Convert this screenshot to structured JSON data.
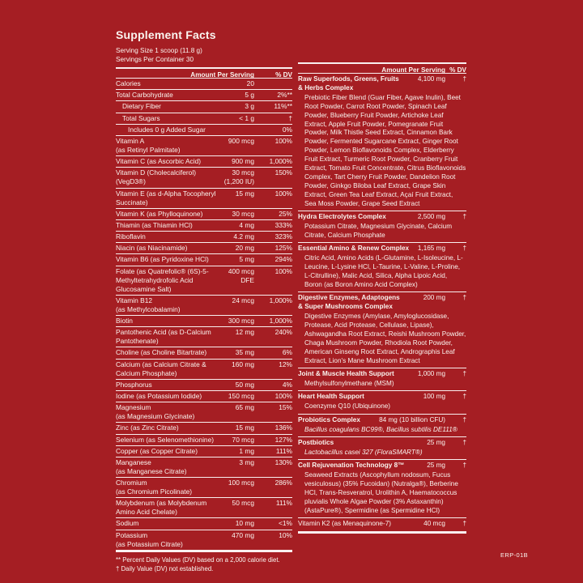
{
  "page": {
    "background_color": "#A51E23",
    "text_color": "#FAF4EF",
    "erp_code": "ERP-01B"
  },
  "header": {
    "title": "Supplement Facts",
    "serving_size": "Serving Size 1 scoop (11.8 g)",
    "servings_per_container": "Servings Per Container 30"
  },
  "left_table": {
    "col_amount": "Amount Per Serving",
    "col_dv": "% DV",
    "rows": [
      {
        "name": "Calories",
        "amount": "20",
        "dv": "",
        "indent": 0
      },
      {
        "name": "Total Carbohydrate",
        "amount": "5 g",
        "dv": "2%**",
        "indent": 0
      },
      {
        "name": "Dietary Fiber",
        "amount": "3 g",
        "dv": "11%**",
        "indent": 1
      },
      {
        "name": "Total Sugars",
        "amount": "< 1 g",
        "dv": "†",
        "indent": 1
      },
      {
        "name": "Includes 0 g Added Sugar",
        "amount": "",
        "dv": "0%",
        "indent": 2
      },
      {
        "name": "Vitamin A\n(as Retinyl Palmitate)",
        "amount": "900 mcg",
        "dv": "100%",
        "indent": 0
      },
      {
        "name": "Vitamin C (as Ascorbic Acid)",
        "amount": "900 mg",
        "dv": "1,000%",
        "indent": 0
      },
      {
        "name": "Vitamin D (Cholecalciferol)\n(VegD3®)",
        "amount": "30 mcg\n(1,200 IU)",
        "dv": "150%",
        "indent": 0
      },
      {
        "name": "Vitamin E (as d-Alpha Tocopheryl\nSuccinate)",
        "amount": "15 mg",
        "dv": "100%",
        "indent": 0
      },
      {
        "name": "Vitamin K (as Phylloquinone)",
        "amount": "30 mcg",
        "dv": "25%",
        "indent": 0
      },
      {
        "name": "Thiamin (as Thiamin HCl)",
        "amount": "4 mg",
        "dv": "333%",
        "indent": 0
      },
      {
        "name": "Riboflavin",
        "amount": "4.2 mg",
        "dv": "323%",
        "indent": 0
      },
      {
        "name": "Niacin (as Niacinamide)",
        "amount": "20 mg",
        "dv": "125%",
        "indent": 0
      },
      {
        "name": "Vitamin B6 (as Pyridoxine HCl)",
        "amount": "5 mg",
        "dv": "294%",
        "indent": 0
      },
      {
        "name": "Folate (as Quatrefolic® (6S)-5-\nMethyltetrahydrofolic Acid\nGlucosamine Salt)",
        "amount": "400 mcg\nDFE",
        "dv": "100%",
        "indent": 0
      },
      {
        "name": "Vitamin B12\n(as Methylcobalamin)",
        "amount": "24 mcg",
        "dv": "1,000%",
        "indent": 0
      },
      {
        "name": "Biotin",
        "amount": "300 mcg",
        "dv": "1,000%",
        "indent": 0
      },
      {
        "name": "Pantothenic Acid (as D-Calcium\nPantothenate)",
        "amount": "12 mg",
        "dv": "240%",
        "indent": 0
      },
      {
        "name": "Choline (as Choline Bitartrate)",
        "amount": "35 mg",
        "dv": "6%",
        "indent": 0
      },
      {
        "name": "Calcium (as Calcium Citrate &\nCalcium Phosphate)",
        "amount": "160 mg",
        "dv": "12%",
        "indent": 0
      },
      {
        "name": "Phosphorus",
        "amount": "50 mg",
        "dv": "4%",
        "indent": 0
      },
      {
        "name": "Iodine (as Potassium Iodide)",
        "amount": "150 mcg",
        "dv": "100%",
        "indent": 0
      },
      {
        "name": "Magnesium\n(as Magnesium Glycinate)",
        "amount": "65 mg",
        "dv": "15%",
        "indent": 0
      },
      {
        "name": "Zinc (as Zinc Citrate)",
        "amount": "15 mg",
        "dv": "136%",
        "indent": 0
      },
      {
        "name": "Selenium (as Selenomethionine)",
        "amount": "70 mcg",
        "dv": "127%",
        "indent": 0
      },
      {
        "name": "Copper (as Copper Citrate)",
        "amount": "1 mg",
        "dv": "111%",
        "indent": 0
      },
      {
        "name": "Manganese\n(as Manganese Citrate)",
        "amount": "3 mg",
        "dv": "130%",
        "indent": 0
      },
      {
        "name": "Chromium\n(as Chromium Picolinate)",
        "amount": "100 mcg",
        "dv": "286%",
        "indent": 0
      },
      {
        "name": "Molybdenum (as Molybdenum\nAmino Acid Chelate)",
        "amount": "50 mcg",
        "dv": "111%",
        "indent": 0
      },
      {
        "name": "Sodium",
        "amount": "10 mg",
        "dv": "<1%",
        "indent": 0
      },
      {
        "name": "Potassium\n(as Potassium Citrate)",
        "amount": "470 mg",
        "dv": "10%",
        "indent": 0
      }
    ]
  },
  "right_table": {
    "col_amount": "Amount Per Serving",
    "col_dv": "% DV",
    "rows": [
      {
        "name": "Raw Superfoods, Greens, Fruits\n& Herbs Complex",
        "amount": "4,100 mg",
        "dv": "†",
        "bold": true,
        "sub": "Prebiotic Fiber Blend (Guar Fiber, Agave Inulin), Beet Root Powder, Carrot Root Powder, Spinach Leaf Powder, Blueberry Fruit Powder, Artichoke Leaf Extract, Apple Fruit Powder, Pomegranate Fruit Powder, Milk Thistle Seed Extract, Cinnamon Bark Powder, Fermented Sugarcane Extract, Ginger Root Powder, Lemon Bioflavonoids Complex, Elderberry Fruit Extract, Turmeric Root Powder, Cranberry Fruit Extract, Tomato Fruit Concentrate, Citrus Bioflavonoids Complex, Tart Cherry Fruit Powder, Dandelion Root Powder, Ginkgo Biloba Leaf Extract, Grape Skin Extract, Green Tea Leaf Extract, Açaí Fruit Extract, Sea Moss Powder, Grape Seed Extract"
      },
      {
        "name": "Hydra Electrolytes Complex",
        "amount": "2,500 mg",
        "dv": "†",
        "bold": true,
        "sub": "Potassium Citrate, Magnesium Glycinate, Calcium Citrate, Calcium Phosphate"
      },
      {
        "name": "Essential Amino & Renew Complex",
        "amount": "1,165 mg",
        "dv": "†",
        "bold": true,
        "sub": "Citric Acid, Amino Acids (L-Glutamine, L-Isoleucine, L-Leucine, L-Lysine HCl, L-Taurine, L-Valine, L-Proline, L-Citrulline), Malic Acid, Silica, Alpha Lipoic Acid, Boron (as Boron Amino Acid Complex)"
      },
      {
        "name": "Digestive Enzymes, Adaptogens\n& Super Mushrooms Complex",
        "amount": "200 mg",
        "dv": "†",
        "bold": true,
        "sub": "Digestive Enzymes (Amylase, Amyloglucosidase, Protease, Acid Protease, Cellulase, Lipase), Ashwagandha Root Extract, Reishi Mushroom Powder, Chaga Mushroom Powder, Rhodiola Root Powder, American Ginseng Root Extract, Andrographis Leaf Extract, Lion's Mane Mushroom Extract"
      },
      {
        "name": "Joint & Muscle Health Support",
        "amount": "1,000 mg",
        "dv": "†",
        "bold": true,
        "sub": "Methylsulfonylmethane (MSM)"
      },
      {
        "name": "Heart Health Support",
        "amount": "100 mg",
        "dv": "†",
        "bold": true,
        "sub": "Coenzyme Q10 (Ubiquinone)"
      },
      {
        "name": "Probiotics Complex",
        "amount": "84 mg (10 billion CFU)",
        "dv": "†",
        "bold": true,
        "sub": "Bacillus coagulans BC99®, Bacillus subtilis DE111®",
        "sub_italic": true
      },
      {
        "name": "Postbiotics",
        "amount": "25 mg",
        "dv": "†",
        "bold": true,
        "sub": "Lactobacillus casei 327 (FloraSMART®)",
        "sub_italic": true
      },
      {
        "name": "Cell Rejuvenation Technology 8™",
        "amount": "25 mg",
        "dv": "†",
        "bold": true,
        "sub": "Seaweed Extracts (Ascophyllum nodosum, Fucus vesiculosus) (35% Fucoidan) (Nutralga®), Berberine HCl, Trans-Resveratrol, Urolithin A, Haematococcus pluvialis Whole Algae Powder (3% Astaxanthin) (AstaPure®), Spermidine (as Spermidine HCl)"
      },
      {
        "name": "Vitamin K2 (as Menaquinone-7)",
        "amount": "40 mcg",
        "dv": "†",
        "bold": false
      }
    ]
  },
  "footnotes": {
    "daily_values": "** Percent Daily Values (DV) based on a 2,000 calorie diet.",
    "dagger": "† Daily Value (DV) not established."
  }
}
